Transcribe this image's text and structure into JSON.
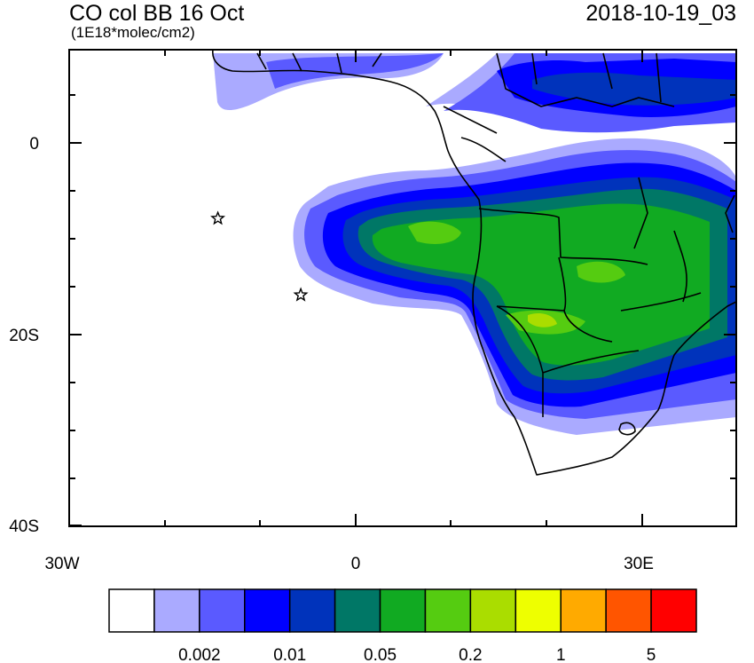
{
  "title": "CO col BB 16 Oct",
  "subtitle": "(1E18*molec/cm2)",
  "timestamp": "2018-10-19_03",
  "map": {
    "lat_ticks": [
      "0",
      "20S",
      "40S"
    ],
    "lon_ticks": [
      "30W",
      "0",
      "30E"
    ],
    "markers": [
      {
        "name": "star-marker",
        "lon": -14.4,
        "lat": -7.9
      },
      {
        "name": "star-marker",
        "lon": -5.7,
        "lat": -15.9
      }
    ]
  },
  "colorbar": {
    "colors": [
      "#ffffff",
      "#aaaaff",
      "#5a5aff",
      "#0000ff",
      "#0033bb",
      "#007766",
      "#11aa22",
      "#55cc11",
      "#aadd00",
      "#eeff00",
      "#ffaa00",
      "#ff5500",
      "#ff0000"
    ],
    "labels": [
      "0.002",
      "0.01",
      "0.05",
      "0.2",
      "1",
      "5"
    ]
  }
}
